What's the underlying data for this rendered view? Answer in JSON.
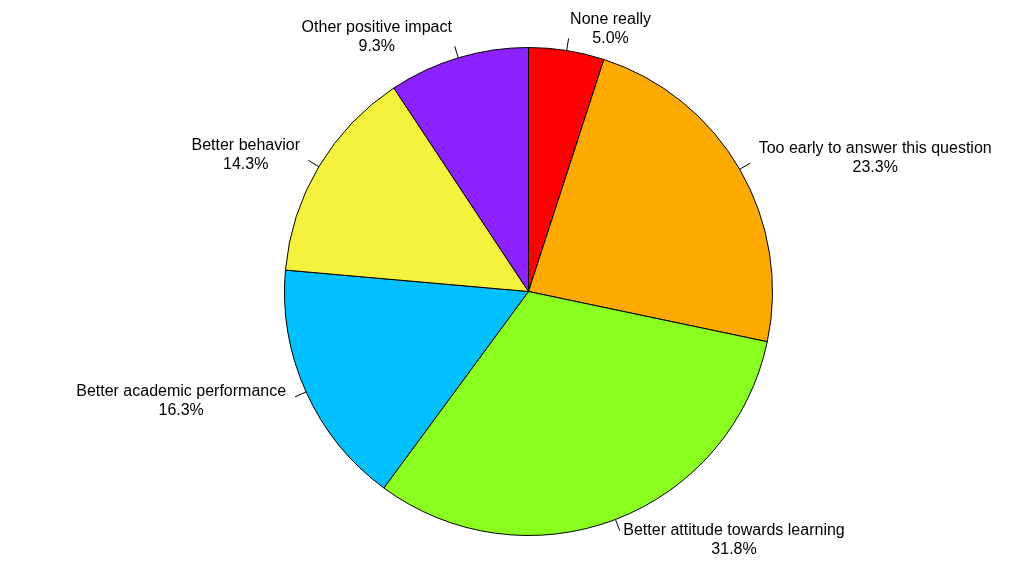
{
  "chart_data": {
    "type": "pie",
    "categories": [
      "None really",
      "Too early to answer this question",
      "Better attitude towards learning",
      "Better academic performance",
      "Better behavior",
      "Other positive impact"
    ],
    "values": [
      5.0,
      23.3,
      31.8,
      16.3,
      14.3,
      9.3
    ],
    "value_labels": [
      "5.0%",
      "23.3%",
      "31.8%",
      "16.3%",
      "14.3%",
      "9.3%"
    ],
    "colors": [
      "#ff0000",
      "#ffaa00",
      "#8aff1f",
      "#00c0ff",
      "#f4f23c",
      "#8b22ff"
    ],
    "legend": false
  }
}
